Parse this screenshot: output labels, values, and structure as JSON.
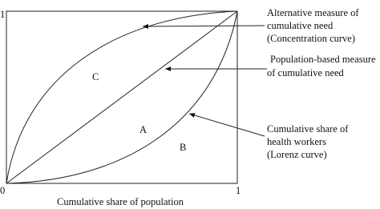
{
  "axis": {
    "y_top": "1",
    "origin": "0",
    "x_right": "1",
    "title": "Cumulative share of population"
  },
  "regions": [
    "C",
    "A",
    "B"
  ],
  "annotations": [
    {
      "lines": [
        "Alternative measure of",
        "cumulative need",
        "(Concentration curve)"
      ]
    },
    {
      "lines": [
        "Population-based measure",
        "of cumulative need"
      ]
    },
    {
      "lines": [
        "Cumulative share of",
        "health workers",
        "(Lorenz curve)"
      ]
    }
  ]
}
